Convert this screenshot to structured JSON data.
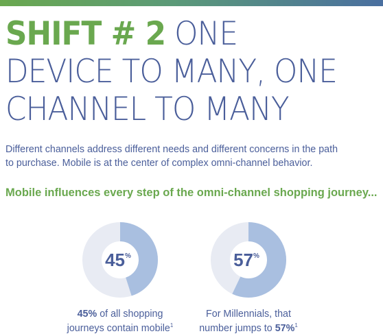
{
  "headline": {
    "shift": "SHIFT # 2",
    "line1_rest": " ONE",
    "line2": "DEVICE TO MANY, ONE",
    "line3": "CHANNEL TO MANY"
  },
  "intro": {
    "line1": "Different channels address different needs and different concerns in the path",
    "line2": "to purchase. Mobile is at the center of complex omni-channel behavior."
  },
  "subhead": "Mobile influences every step of the omni-channel shopping journey...",
  "stats": [
    {
      "value": 45,
      "value_label": "45",
      "pct_sign": "%",
      "caption_bold": "45%",
      "caption_line1_rest": " of all shopping",
      "caption_line2": "journeys contain mobile",
      "footnote": "1"
    },
    {
      "value": 57,
      "value_label": "57",
      "pct_sign": "%",
      "caption_line1": "For Millennials, that",
      "caption_line2_lead": "number jumps to ",
      "caption_bold": "57%",
      "footnote": "1"
    }
  ],
  "colors": {
    "green": "#6aa84f",
    "navy": "#4a5e9a",
    "donut_fill": "#a9bfe0",
    "donut_track": "#e8ebf3"
  }
}
